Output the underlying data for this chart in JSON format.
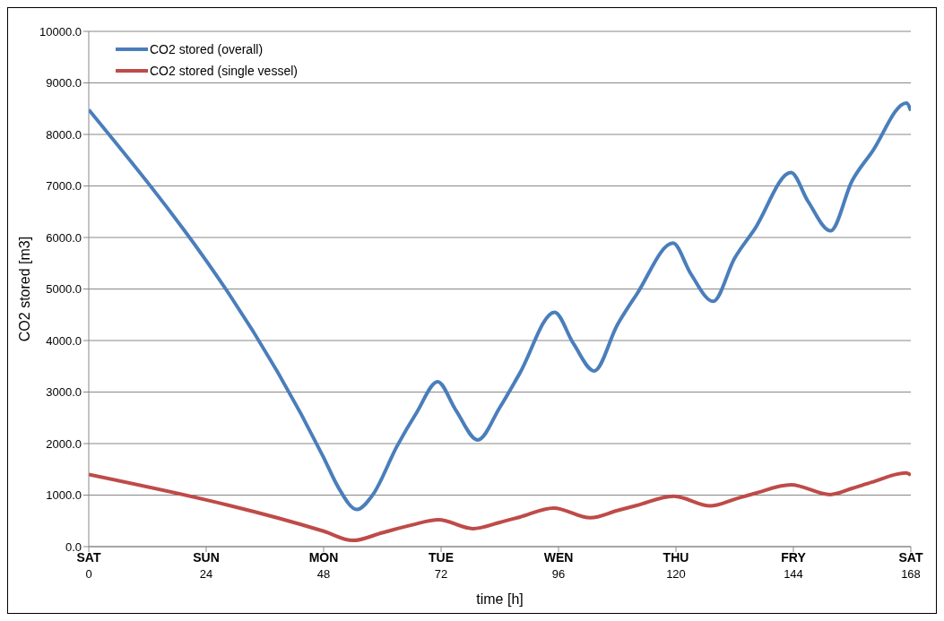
{
  "chart_data": {
    "type": "line",
    "xlabel": "time    [h]",
    "ylabel": "CO2 stored  [m3]",
    "xlim": [
      0,
      168
    ],
    "xticks": [
      0,
      24,
      48,
      72,
      96,
      120,
      144,
      168
    ],
    "ylim": [
      0,
      10000
    ],
    "yticks": [
      {
        "value": 0,
        "label": "0.0"
      },
      {
        "value": 1000,
        "label": "1000.0"
      },
      {
        "value": 2000,
        "label": "2000.0"
      },
      {
        "value": 3000,
        "label": "3000.0"
      },
      {
        "value": 4000,
        "label": "4000.0"
      },
      {
        "value": 5000,
        "label": "5000.0"
      },
      {
        "value": 6000,
        "label": "6000.0"
      },
      {
        "value": 7000,
        "label": "7000.0"
      },
      {
        "value": 8000,
        "label": "8000.0"
      },
      {
        "value": 9000,
        "label": "9000.0"
      },
      {
        "value": 10000,
        "label": "10000.0"
      }
    ],
    "grid": "y",
    "legend": "top left",
    "marker": "none",
    "line_style": "solid",
    "series": [
      {
        "name": "CO2 stored (overall)",
        "color": "#4a7ebb",
        "x": [
          0,
          48,
          51,
          54.8,
          58,
          63,
          67,
          71.3,
          75,
          79.5,
          84,
          88,
          95.2,
          99,
          103.3,
          108,
          112,
          119.4,
          123,
          127.6,
          132,
          136,
          143.5,
          147,
          151.6,
          156,
          160,
          167.1,
          168
        ],
        "values": [
          8480,
          1730,
          1150,
          720,
          1000,
          1950,
          2600,
          3200,
          2650,
          2070,
          2700,
          3350,
          4550,
          3950,
          3410,
          4300,
          4900,
          5890,
          5300,
          4760,
          5600,
          6150,
          7260,
          6700,
          6130,
          7100,
          7650,
          8610,
          8460
        ]
      },
      {
        "name": "CO2 stored (single vessel)",
        "color": "#be4b48",
        "x": [
          0,
          48,
          54,
          60,
          66,
          71.5,
          78.5,
          84,
          88,
          95,
          102.5,
          108,
          112,
          119.5,
          127,
          132,
          136,
          143.5,
          151.5,
          156,
          160,
          167,
          168
        ],
        "values": [
          1400,
          300,
          120,
          270,
          420,
          520,
          350,
          470,
          570,
          750,
          560,
          700,
          800,
          980,
          790,
          920,
          1030,
          1200,
          1010,
          1130,
          1250,
          1430,
          1390
        ]
      }
    ],
    "annotations": [
      "SAT",
      "SUN",
      "MON",
      "TUE",
      "WEN",
      "THU",
      "FRY",
      "SAT"
    ]
  }
}
